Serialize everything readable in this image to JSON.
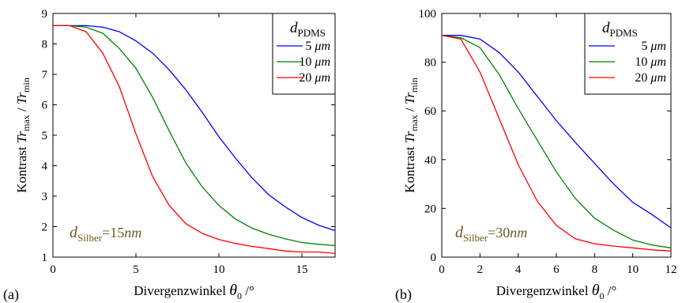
{
  "chart_data": [
    {
      "type": "line",
      "panel_label": "(a)",
      "xlabel_prefix": "Divergenzwinkel ",
      "xlabel_symbol": "θ",
      "xlabel_sub": "0",
      "xlabel_suffix": " /°",
      "ylabel_word": "Kontrast",
      "ylabel_num": "Tr",
      "ylabel_num_sub": "max",
      "ylabel_sep": " / ",
      "ylabel_den": "Tr",
      "ylabel_den_sub": "min",
      "xlim": [
        0,
        17
      ],
      "ylim": [
        1,
        9
      ],
      "xticks": [
        0,
        5,
        10,
        15
      ],
      "yticks": [
        1,
        2,
        3,
        4,
        5,
        6,
        7,
        8,
        9
      ],
      "legend_title_main": "d",
      "legend_title_sub": "PDMS",
      "legend_position": "top-right",
      "annotation_main": "d",
      "annotation_sub": "Silber",
      "annotation_eq": "=15",
      "annotation_unit": "nm",
      "series": [
        {
          "name_num": "5",
          "name_unit": "μm",
          "color": "#0000ff",
          "x": [
            0,
            1,
            2,
            3,
            4,
            5,
            6,
            7,
            8,
            9,
            10,
            11,
            12,
            13,
            14,
            15,
            16,
            17
          ],
          "y": [
            8.6,
            8.6,
            8.6,
            8.55,
            8.4,
            8.1,
            7.7,
            7.15,
            6.5,
            5.75,
            4.95,
            4.25,
            3.6,
            3.05,
            2.65,
            2.3,
            2.05,
            1.87
          ]
        },
        {
          "name_num": "10",
          "name_unit": "μm",
          "color": "#008000",
          "x": [
            0,
            1,
            2,
            3,
            4,
            5,
            6,
            7,
            8,
            9,
            10,
            11,
            12,
            13,
            14,
            15,
            16,
            17
          ],
          "y": [
            8.6,
            8.6,
            8.55,
            8.35,
            7.85,
            7.2,
            6.25,
            5.15,
            4.1,
            3.3,
            2.7,
            2.25,
            1.95,
            1.75,
            1.6,
            1.48,
            1.42,
            1.38
          ]
        },
        {
          "name_num": "20",
          "name_unit": "μm",
          "color": "#ff0000",
          "x": [
            0,
            1,
            2,
            3,
            4,
            5,
            6,
            7,
            8,
            9,
            10,
            11,
            12,
            13,
            14,
            15,
            16,
            17
          ],
          "y": [
            8.6,
            8.6,
            8.4,
            7.7,
            6.6,
            5.05,
            3.65,
            2.7,
            2.1,
            1.78,
            1.58,
            1.45,
            1.35,
            1.28,
            1.2,
            1.17,
            1.17,
            1.12
          ]
        }
      ]
    },
    {
      "type": "line",
      "panel_label": "(b)",
      "xlabel_prefix": "Divergenzwinkel ",
      "xlabel_symbol": "θ",
      "xlabel_sub": "0",
      "xlabel_suffix": " /°",
      "ylabel_word": "Kontrast",
      "ylabel_num": "Tr",
      "ylabel_num_sub": "max",
      "ylabel_sep": " / ",
      "ylabel_den": "Tr",
      "ylabel_den_sub": "min",
      "xlim": [
        0,
        12
      ],
      "ylim": [
        0,
        100
      ],
      "xticks": [
        0,
        2,
        4,
        6,
        8,
        10,
        12
      ],
      "yticks": [
        0,
        20,
        40,
        60,
        80,
        100
      ],
      "legend_title_main": "d",
      "legend_title_sub": "PDMS",
      "legend_position": "top-right",
      "annotation_main": "d",
      "annotation_sub": "Silber",
      "annotation_eq": "=30",
      "annotation_unit": "nm",
      "series": [
        {
          "name_num": "5",
          "name_unit": "μm",
          "color": "#0000ff",
          "x": [
            0,
            1,
            2,
            3,
            4,
            5,
            6,
            7,
            8,
            9,
            10,
            11,
            12
          ],
          "y": [
            91,
            91,
            89.5,
            84,
            76,
            66,
            56,
            47,
            38.5,
            30,
            22.5,
            17.5,
            12
          ]
        },
        {
          "name_num": "10",
          "name_unit": "μm",
          "color": "#008000",
          "x": [
            0,
            1,
            2,
            3,
            4,
            5,
            6,
            7,
            8,
            9,
            10,
            11,
            12
          ],
          "y": [
            91,
            90,
            86,
            75,
            61,
            48,
            35,
            24,
            16,
            11,
            7,
            5,
            3.8
          ]
        },
        {
          "name_num": "20",
          "name_unit": "μm",
          "color": "#ff0000",
          "x": [
            0,
            1,
            2,
            3,
            4,
            5,
            6,
            7,
            8,
            9,
            10,
            11,
            12
          ],
          "y": [
            91,
            89.5,
            76,
            57,
            38,
            23,
            13,
            7.5,
            5.5,
            4.5,
            3.8,
            3,
            2.5
          ]
        }
      ]
    }
  ]
}
